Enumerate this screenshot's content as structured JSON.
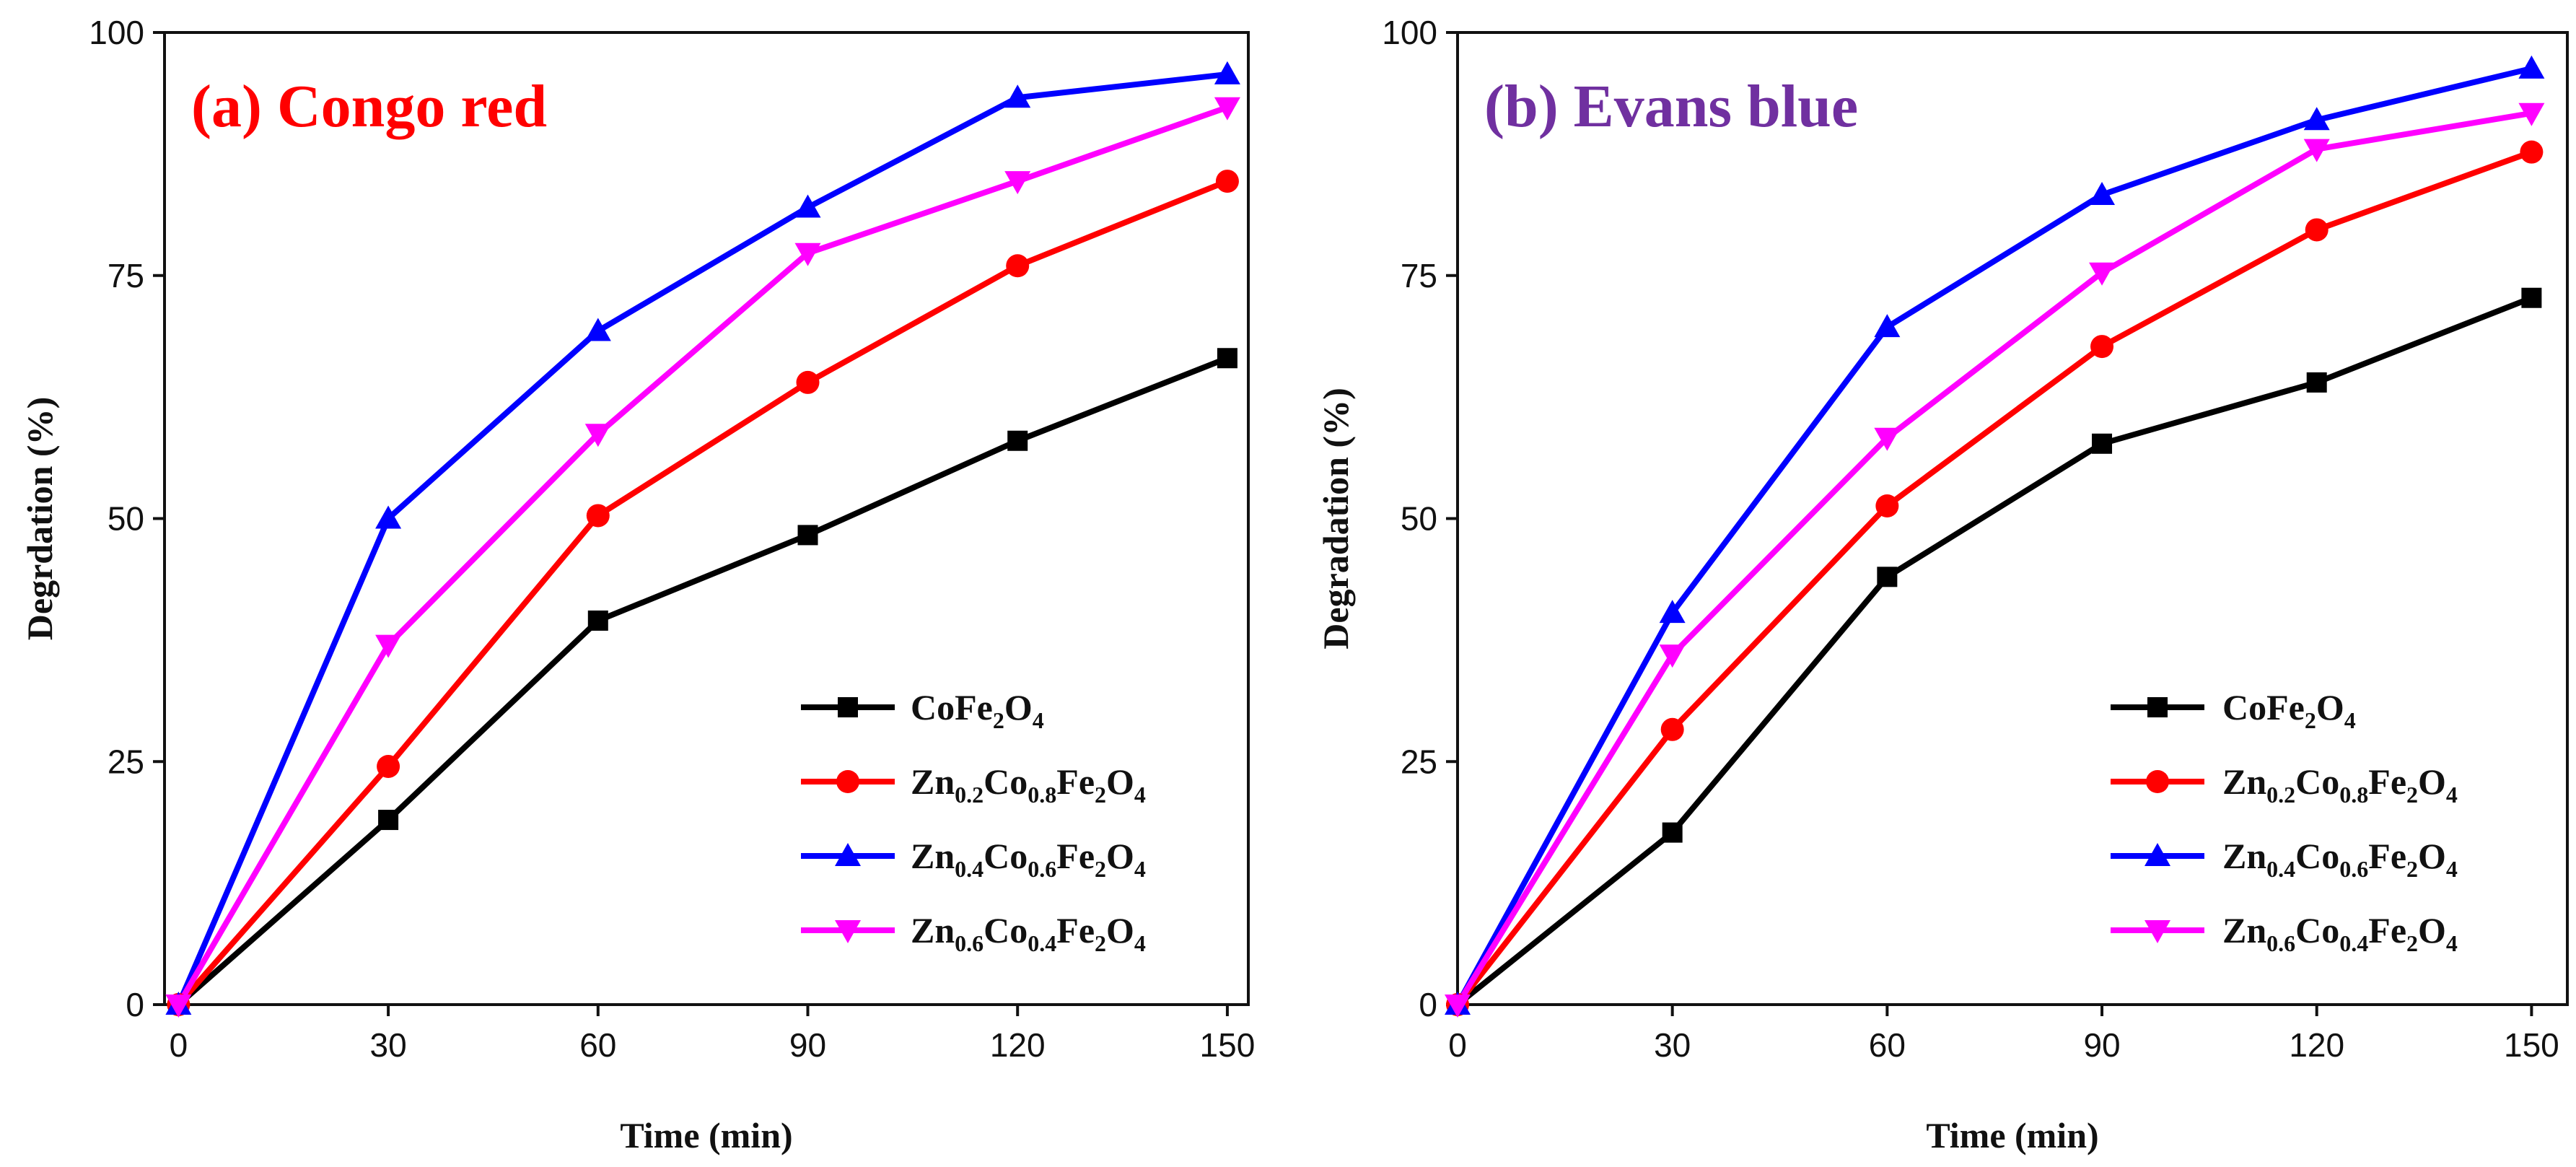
{
  "figure": {
    "chart_data": [
      {
        "type": "line",
        "panel_title": "(a) Congo red",
        "title_color": "#ff0000",
        "xlabel": "Time (min)",
        "ylabel": "Degrdation (%)",
        "x": [
          0,
          30,
          60,
          90,
          120,
          150
        ],
        "xlim": [
          -2,
          153
        ],
        "ylim": [
          0,
          100
        ],
        "xticks": [
          "0",
          "30",
          "60",
          "90",
          "120",
          "150"
        ],
        "yticks": [
          "0",
          "25",
          "50",
          "75",
          "100"
        ],
        "legend_position": "bottom-right",
        "series": [
          {
            "name": "CoFe2O4",
            "label_parts": [
              [
                "CoFe",
                false
              ],
              [
                "2",
                true
              ],
              [
                "O",
                false
              ],
              [
                "4",
                true
              ]
            ],
            "color": "#000000",
            "marker": "square",
            "values": [
              0,
              19,
              39.5,
              48.3,
              58,
              66.5
            ]
          },
          {
            "name": "Zn0.2Co0.8Fe2O4",
            "label_parts": [
              [
                "Zn",
                false
              ],
              [
                "0.2",
                true
              ],
              [
                "Co",
                false
              ],
              [
                "0.8",
                true
              ],
              [
                "Fe",
                false
              ],
              [
                "2",
                true
              ],
              [
                "O",
                false
              ],
              [
                "4",
                true
              ]
            ],
            "color": "#ff0000",
            "marker": "circle",
            "values": [
              0,
              24.5,
              50.3,
              64,
              76,
              84.7
            ]
          },
          {
            "name": "Zn0.4Co0.6Fe2O4",
            "label_parts": [
              [
                "Zn",
                false
              ],
              [
                "0.4",
                true
              ],
              [
                "Co",
                false
              ],
              [
                "0.6",
                true
              ],
              [
                "Fe",
                false
              ],
              [
                "2",
                true
              ],
              [
                "O",
                false
              ],
              [
                "4",
                true
              ]
            ],
            "color": "#0000ff",
            "marker": "triangle-up",
            "values": [
              0,
              50,
              69.3,
              82,
              93.3,
              95.7
            ]
          },
          {
            "name": "Zn0.6Co0.4Fe2O4",
            "label_parts": [
              [
                "Zn",
                false
              ],
              [
                "0.6",
                true
              ],
              [
                "Co",
                false
              ],
              [
                "0.4",
                true
              ],
              [
                "Fe",
                false
              ],
              [
                "2",
                true
              ],
              [
                "O",
                false
              ],
              [
                "4",
                true
              ]
            ],
            "color": "#ff00ff",
            "marker": "triangle-down",
            "values": [
              0,
              37,
              58.7,
              77.3,
              84.7,
              92.3
            ]
          }
        ]
      },
      {
        "type": "line",
        "panel_title": "(b) Evans blue",
        "title_color": "#7030a0",
        "xlabel": "Time (min)",
        "ylabel": "Degradation (%)",
        "x": [
          0,
          30,
          60,
          90,
          120,
          150
        ],
        "xlim": [
          0,
          155
        ],
        "ylim": [
          0,
          100
        ],
        "xticks": [
          "0",
          "30",
          "60",
          "90",
          "120",
          "150"
        ],
        "yticks": [
          "0",
          "25",
          "50",
          "75",
          "100"
        ],
        "legend_position": "bottom-right",
        "series": [
          {
            "name": "CoFe2O4",
            "label_parts": [
              [
                "CoFe",
                false
              ],
              [
                "2",
                true
              ],
              [
                "O",
                false
              ],
              [
                "4",
                true
              ]
            ],
            "color": "#000000",
            "marker": "square",
            "values": [
              0,
              17.7,
              44,
              57.7,
              64,
              72.7
            ]
          },
          {
            "name": "Zn0.2Co0.8Fe2O4",
            "label_parts": [
              [
                "Zn",
                false
              ],
              [
                "0.2",
                true
              ],
              [
                "Co",
                false
              ],
              [
                "0.8",
                true
              ],
              [
                "Fe",
                false
              ],
              [
                "2",
                true
              ],
              [
                "O",
                false
              ],
              [
                "4",
                true
              ]
            ],
            "color": "#ff0000",
            "marker": "circle",
            "values": [
              0,
              28.3,
              51.3,
              67.7,
              79.7,
              87.7
            ]
          },
          {
            "name": "Zn0.4Co0.6Fe2O4",
            "label_parts": [
              [
                "Zn",
                false
              ],
              [
                "0.4",
                true
              ],
              [
                "Co",
                false
              ],
              [
                "0.6",
                true
              ],
              [
                "Fe",
                false
              ],
              [
                "2",
                true
              ],
              [
                "O",
                false
              ],
              [
                "4",
                true
              ]
            ],
            "color": "#0000ff",
            "marker": "triangle-up",
            "values": [
              0,
              40.3,
              69.7,
              83.3,
              91,
              96.3
            ]
          },
          {
            "name": "Zn0.6Co0.4Fe2O4",
            "label_parts": [
              [
                "Zn",
                false
              ],
              [
                "0.6",
                true
              ],
              [
                "Co",
                false
              ],
              [
                "0.4",
                true
              ],
              [
                "Fe",
                false
              ],
              [
                "2",
                true
              ],
              [
                "O",
                false
              ],
              [
                "4",
                true
              ]
            ],
            "color": "#ff00ff",
            "marker": "triangle-down",
            "values": [
              0,
              36,
              58.3,
              75.3,
              88,
              91.7
            ]
          }
        ]
      }
    ]
  }
}
